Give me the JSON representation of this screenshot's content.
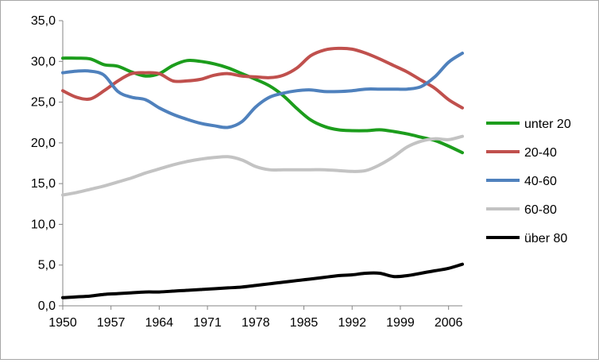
{
  "chart_data": {
    "type": "line",
    "title": "",
    "xlabel": "",
    "ylabel": "",
    "ylim": [
      0,
      35
    ],
    "xlim": [
      1950,
      2008
    ],
    "y_ticks": [
      "0,0",
      "5,0",
      "10,0",
      "15,0",
      "20,0",
      "25,0",
      "30,0",
      "35,0"
    ],
    "y_tick_values": [
      0,
      5,
      10,
      15,
      20,
      25,
      30,
      35
    ],
    "x_ticks": [
      "1950",
      "1957",
      "1964",
      "1971",
      "1978",
      "1985",
      "1992",
      "1999",
      "2006"
    ],
    "x_tick_values": [
      1950,
      1957,
      1964,
      1971,
      1978,
      1985,
      1992,
      1999,
      2006
    ],
    "grid": "y-major",
    "legend": "right",
    "series": [
      {
        "name": "unter 20",
        "color": "#1c9d1c",
        "x": [
          1950,
          1952,
          1954,
          1956,
          1958,
          1960,
          1962,
          1964,
          1966,
          1968,
          1970,
          1972,
          1974,
          1976,
          1978,
          1980,
          1982,
          1984,
          1986,
          1988,
          1990,
          1992,
          1994,
          1996,
          1998,
          2000,
          2002,
          2004,
          2006,
          2008
        ],
        "values": [
          30.4,
          30.4,
          30.3,
          29.6,
          29.4,
          28.7,
          28.2,
          28.5,
          29.5,
          30.1,
          30.0,
          29.7,
          29.2,
          28.5,
          27.8,
          27.0,
          25.8,
          24.2,
          22.8,
          22.0,
          21.6,
          21.5,
          21.5,
          21.6,
          21.4,
          21.1,
          20.7,
          20.3,
          19.6,
          18.8
        ]
      },
      {
        "name": "20-40",
        "color": "#c0504d",
        "x": [
          1950,
          1952,
          1954,
          1956,
          1958,
          1960,
          1962,
          1964,
          1966,
          1968,
          1970,
          1972,
          1974,
          1976,
          1978,
          1980,
          1982,
          1984,
          1986,
          1988,
          1990,
          1992,
          1994,
          1996,
          1998,
          2000,
          2002,
          2004,
          2006,
          2008
        ],
        "values": [
          26.4,
          25.6,
          25.4,
          26.4,
          27.6,
          28.5,
          28.6,
          28.5,
          27.6,
          27.6,
          27.8,
          28.3,
          28.5,
          28.2,
          28.1,
          28.0,
          28.3,
          29.2,
          30.7,
          31.4,
          31.6,
          31.5,
          31.0,
          30.3,
          29.5,
          28.7,
          27.7,
          26.7,
          25.3,
          24.3
        ]
      },
      {
        "name": "40-60",
        "color": "#4f81bd",
        "x": [
          1950,
          1952,
          1954,
          1956,
          1958,
          1960,
          1962,
          1964,
          1966,
          1968,
          1970,
          1972,
          1974,
          1976,
          1978,
          1980,
          1982,
          1984,
          1986,
          1988,
          1990,
          1992,
          1994,
          1996,
          1998,
          2000,
          2002,
          2004,
          2006,
          2008
        ],
        "values": [
          28.6,
          28.8,
          28.8,
          28.3,
          26.3,
          25.6,
          25.3,
          24.3,
          23.5,
          22.9,
          22.4,
          22.1,
          21.9,
          22.6,
          24.4,
          25.6,
          26.1,
          26.4,
          26.5,
          26.3,
          26.3,
          26.4,
          26.6,
          26.6,
          26.6,
          26.6,
          26.9,
          28.1,
          29.9,
          31.0
        ]
      },
      {
        "name": "60-80",
        "color": "#c3c3c3",
        "x": [
          1950,
          1952,
          1954,
          1956,
          1958,
          1960,
          1962,
          1964,
          1966,
          1968,
          1970,
          1972,
          1974,
          1976,
          1978,
          1980,
          1982,
          1984,
          1986,
          1988,
          1990,
          1992,
          1994,
          1996,
          1998,
          2000,
          2002,
          2004,
          2006,
          2008
        ],
        "values": [
          13.6,
          13.9,
          14.3,
          14.7,
          15.2,
          15.7,
          16.3,
          16.8,
          17.3,
          17.7,
          18.0,
          18.2,
          18.3,
          17.9,
          17.1,
          16.7,
          16.7,
          16.7,
          16.7,
          16.7,
          16.6,
          16.5,
          16.6,
          17.3,
          18.3,
          19.5,
          20.2,
          20.5,
          20.4,
          20.8
        ]
      },
      {
        "name": "über 80",
        "color": "#000000",
        "x": [
          1950,
          1952,
          1954,
          1956,
          1958,
          1960,
          1962,
          1964,
          1966,
          1968,
          1970,
          1972,
          1974,
          1976,
          1978,
          1980,
          1982,
          1984,
          1986,
          1988,
          1990,
          1992,
          1994,
          1996,
          1998,
          2000,
          2002,
          2004,
          2006,
          2008
        ],
        "values": [
          1.0,
          1.1,
          1.2,
          1.4,
          1.5,
          1.6,
          1.7,
          1.7,
          1.8,
          1.9,
          2.0,
          2.1,
          2.2,
          2.3,
          2.5,
          2.7,
          2.9,
          3.1,
          3.3,
          3.5,
          3.7,
          3.8,
          4.0,
          4.0,
          3.6,
          3.7,
          4.0,
          4.3,
          4.6,
          5.1
        ]
      }
    ]
  }
}
